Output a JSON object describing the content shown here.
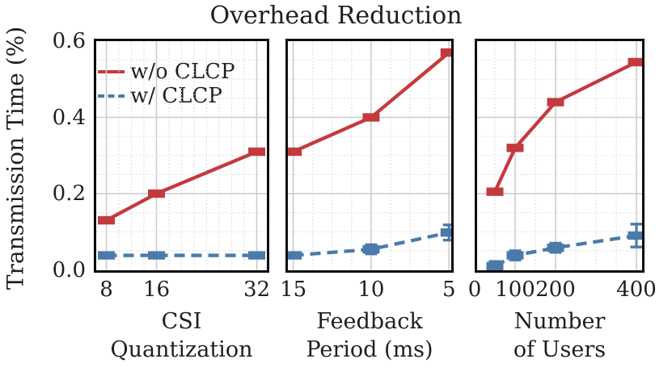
{
  "chart_data": {
    "type": "line",
    "title": "Overhead Reduction",
    "ylabel": "Transmission Time (%)",
    "ylim": [
      0,
      0.6
    ],
    "yticks": [
      0.0,
      0.2,
      0.4,
      0.6
    ],
    "ytick_labels": [
      "0.0",
      "0.2",
      "0.4",
      "0.6"
    ],
    "grid": {
      "major": true,
      "minor": true,
      "y_minor_step": 0.05
    },
    "colors": {
      "wo_clcp": "#c33a3e",
      "w_clcp": "#4a7aa9",
      "grid_major": "#cccccc",
      "grid_minor": "#d6d6d6",
      "spine": "#0d0d0d"
    },
    "legend": {
      "position": "upper left of first panel",
      "entries": [
        {
          "label": "w/o CLCP",
          "style": "solid",
          "color": "#c33a3e"
        },
        {
          "label": "w/ CLCP",
          "style": "dashed",
          "color": "#4a7aa9"
        }
      ]
    },
    "panels": [
      {
        "xlabel": "CSI\nQuantization",
        "xlim": [
          6,
          34
        ],
        "x_minor_step": 2,
        "xticks": [
          8,
          16,
          32
        ],
        "xtick_labels": [
          "8",
          "16",
          "32"
        ],
        "x": [
          8,
          16,
          32
        ],
        "series": [
          {
            "name": "w/o CLCP",
            "values": [
              0.13,
              0.2,
              0.31
            ],
            "yerr": [
              0,
              0,
              0
            ]
          },
          {
            "name": "w/ CLCP",
            "values": [
              0.038,
              0.038,
              0.038
            ],
            "yerr": [
              0.005,
              0.005,
              0.005
            ]
          }
        ]
      },
      {
        "xlabel": "Feedback\nPeriod (ms)",
        "xlim": [
          15.5,
          4.7
        ],
        "x_minor_step": 1.25,
        "xticks": [
          15,
          10,
          5
        ],
        "xtick_labels": [
          "15",
          "10",
          "5"
        ],
        "x": [
          15,
          10,
          5
        ],
        "series": [
          {
            "name": "w/o CLCP",
            "values": [
              0.31,
              0.4,
              0.57
            ],
            "yerr": [
              0,
              0,
              0
            ]
          },
          {
            "name": "w/ CLCP",
            "values": [
              0.038,
              0.054,
              0.098
            ],
            "yerr": [
              0.006,
              0.012,
              0.02
            ]
          }
        ]
      },
      {
        "xlabel": "Number\nof Users",
        "xlim": [
          0,
          420
        ],
        "x_minor_step": 50,
        "xticks": [
          0,
          100,
          200,
          400
        ],
        "xtick_labels": [
          "0",
          "100",
          "200",
          "400"
        ],
        "x": [
          50,
          100,
          200,
          400
        ],
        "series": [
          {
            "name": "w/o CLCP",
            "values": [
              0.205,
              0.32,
              0.44,
              0.545
            ],
            "yerr": [
              0,
              0,
              0,
              0
            ]
          },
          {
            "name": "w/ CLCP",
            "values": [
              0.01,
              0.038,
              0.058,
              0.09
            ],
            "yerr": [
              0.012,
              0.012,
              0.012,
              0.03
            ]
          }
        ]
      }
    ]
  }
}
